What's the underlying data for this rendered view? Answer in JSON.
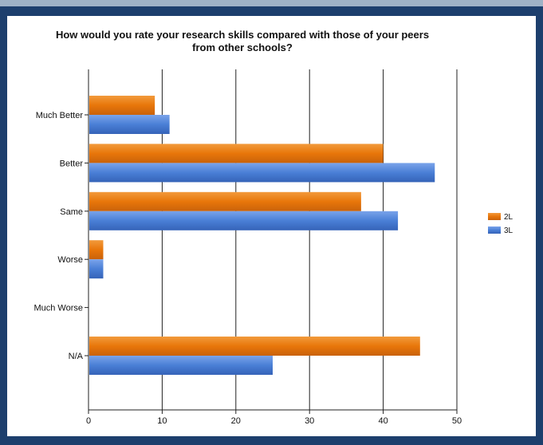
{
  "colors": {
    "frame": "#1d3f6d",
    "background": "#ffffff",
    "series_2L": "#e8760a",
    "series_3L": "#4a7fd6"
  },
  "chart_data": {
    "type": "bar",
    "orientation": "horizontal",
    "title_line1": "How would you rate your research skills compared with those of your peers",
    "title_line2": "from other schools?",
    "categories": [
      "Much Better",
      "Better",
      "Same",
      "Worse",
      "Much Worse",
      "N/A"
    ],
    "series": [
      {
        "name": "2L",
        "color": "#e8760a",
        "values": [
          9,
          40,
          37,
          2,
          0,
          45
        ]
      },
      {
        "name": "3L",
        "color": "#4a7fd6",
        "values": [
          11,
          47,
          42,
          2,
          0,
          25
        ]
      }
    ],
    "xlim": [
      0,
      50
    ],
    "x_ticks": [
      0,
      10,
      20,
      30,
      40,
      50
    ],
    "xlabel": "",
    "ylabel": "",
    "grid": "vertical",
    "legend_position": "right"
  }
}
